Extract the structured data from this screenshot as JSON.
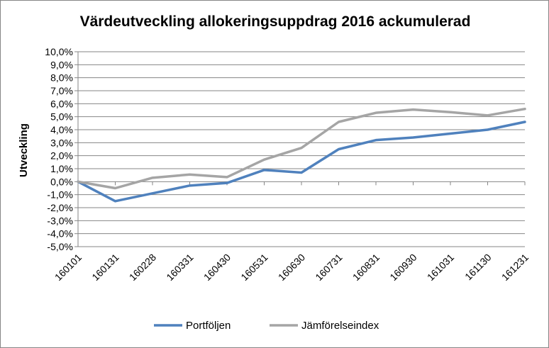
{
  "chart_data": {
    "type": "line",
    "title": "Värdeutveckling allokeringsuppdrag  2016 ackumulerad",
    "ylabel": "Utveckling",
    "xlabel": "",
    "categories": [
      "160101",
      "160131",
      "160228",
      "160331",
      "160430",
      "160531",
      "160630",
      "160731",
      "160831",
      "160930",
      "161031",
      "161130",
      "161231"
    ],
    "ylim": [
      -5,
      10
    ],
    "ytick_step": 1,
    "ytick_labels": [
      "-5,0%",
      "-4,0%",
      "-3,0%",
      "-2,0%",
      "-1,0%",
      "0,0%",
      "1,0%",
      "2,0%",
      "3,0%",
      "4,0%",
      "5,0%",
      "6,0%",
      "7,0%",
      "8,0%",
      "9,0%",
      "10,0%"
    ],
    "grid": true,
    "legend": "bottom",
    "series": [
      {
        "name": "Portföljen",
        "color": "#4f81bd",
        "values": [
          0,
          -1.5,
          -0.9,
          -0.3,
          -0.1,
          0.9,
          0.7,
          2.5,
          3.2,
          3.4,
          3.7,
          4.0,
          4.6
        ]
      },
      {
        "name": "Jämförelseindex",
        "color": "#a5a5a5",
        "values": [
          0,
          -0.5,
          0.3,
          0.55,
          0.35,
          1.7,
          2.6,
          4.6,
          5.3,
          5.55,
          5.35,
          5.1,
          5.6
        ]
      }
    ]
  }
}
